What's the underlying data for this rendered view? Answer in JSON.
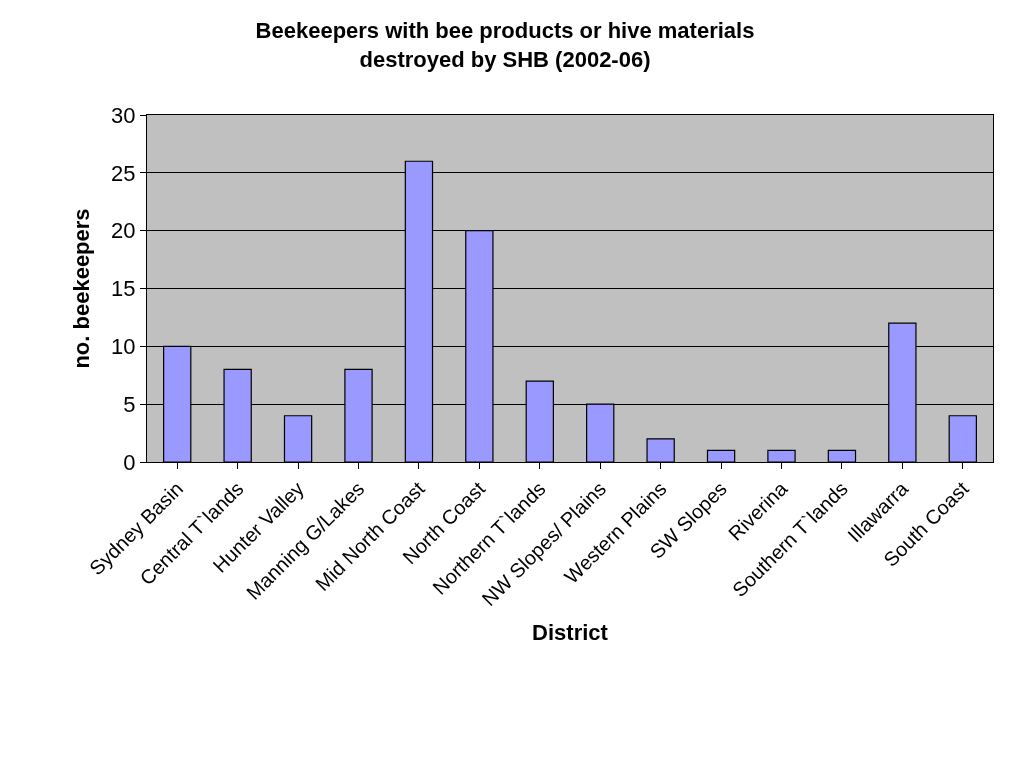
{
  "chart_data": {
    "type": "bar",
    "title": "Beekeepers with bee products or hive materials\ndestroyed by SHB (2002-06)",
    "xlabel": "District",
    "ylabel": "no. beekeepers",
    "categories": [
      "Sydney Basin",
      "Central T`lands",
      "Hunter Valley",
      "Manning G/Lakes",
      "Mid North Coast",
      "North Coast",
      "Northern T`lands",
      "NW Slopes/ Plains",
      "Western Plains",
      "SW Slopes",
      "Riverina",
      "Southern T`lands",
      "Illawarra",
      "South Coast"
    ],
    "values": [
      10,
      8,
      4,
      8,
      26,
      20,
      7,
      5,
      2,
      1,
      1,
      1,
      12,
      4
    ],
    "color": "#9999ff",
    "ylim": [
      0,
      30
    ],
    "yticks": [
      0,
      5,
      10,
      15,
      20,
      25,
      30
    ],
    "grid": "y"
  }
}
